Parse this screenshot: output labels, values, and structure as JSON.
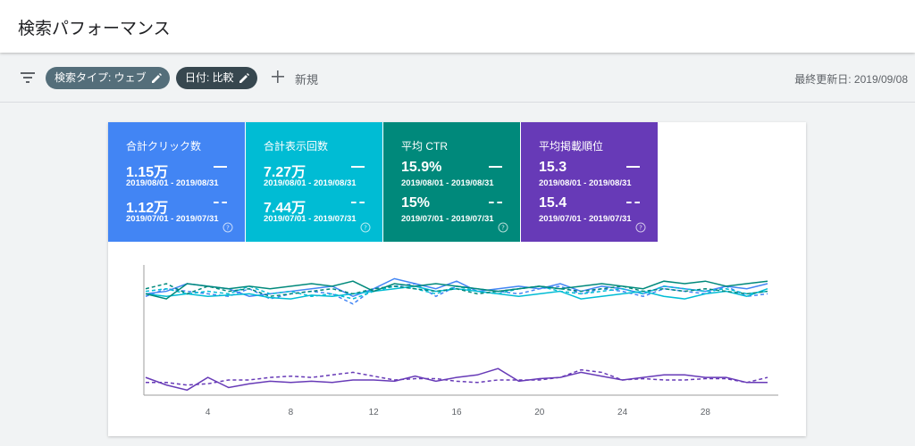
{
  "header": {
    "title": "検索パフォーマンス"
  },
  "toolbar": {
    "filter_icon": "filter-list-icon",
    "chip_search_type": "検索タイプ: ウェブ",
    "chip_date": "日付: 比較",
    "new_label": "新規",
    "last_updated": "最終更新日: 2019/09/08"
  },
  "metrics": [
    {
      "title": "合計クリック数",
      "current": "1.15万",
      "current_range": "2019/08/01 - 2019/08/31",
      "previous": "1.12万",
      "previous_range": "2019/07/01 - 2019/07/31",
      "color": "#4285f4"
    },
    {
      "title": "合計表示回数",
      "current": "7.27万",
      "current_range": "2019/08/01 - 2019/08/31",
      "previous": "7.44万",
      "previous_range": "2019/07/01 - 2019/07/31",
      "color": "#00bcd4"
    },
    {
      "title": "平均 CTR",
      "current": "15.9%",
      "current_range": "2019/08/01 - 2019/08/31",
      "previous": "15%",
      "previous_range": "2019/07/01 - 2019/07/31",
      "color": "#00897b"
    },
    {
      "title": "平均掲載順位",
      "current": "15.3",
      "current_range": "2019/08/01 - 2019/08/31",
      "previous": "15.4",
      "previous_range": "2019/07/01 - 2019/07/31",
      "color": "#673ab7"
    }
  ],
  "chart_data": {
    "type": "line",
    "x": [
      1,
      2,
      3,
      4,
      5,
      6,
      7,
      8,
      9,
      10,
      11,
      12,
      13,
      14,
      15,
      16,
      17,
      18,
      19,
      20,
      21,
      22,
      23,
      24,
      25,
      26,
      27,
      28,
      29,
      30,
      31
    ],
    "xticks": [
      4,
      8,
      12,
      16,
      20,
      24,
      28
    ],
    "ylim": [
      0,
      100
    ],
    "grid": false,
    "series": [
      {
        "name": "",
        "style": "solid",
        "color": "#4285f4",
        "values": [
          80,
          82,
          88,
          86,
          84,
          78,
          80,
          82,
          84,
          86,
          78,
          84,
          92,
          88,
          84,
          90,
          82,
          84,
          86,
          84,
          88,
          82,
          86,
          84,
          80,
          86,
          84,
          82,
          86,
          84,
          88
        ]
      },
      {
        "name": "",
        "style": "dashed",
        "color": "#4285f4",
        "values": [
          78,
          84,
          82,
          80,
          78,
          84,
          76,
          80,
          82,
          80,
          72,
          84,
          86,
          88,
          78,
          86,
          84,
          82,
          80,
          84,
          86,
          80,
          84,
          82,
          78,
          84,
          82,
          80,
          86,
          78,
          80
        ]
      },
      {
        "name": "",
        "style": "solid",
        "color": "#00bcd4",
        "values": [
          80,
          78,
          80,
          78,
          79,
          80,
          77,
          76,
          79,
          78,
          80,
          82,
          84,
          86,
          82,
          84,
          82,
          80,
          78,
          80,
          82,
          76,
          78,
          80,
          82,
          78,
          76,
          80,
          82,
          78,
          84
        ]
      },
      {
        "name": "",
        "style": "dashed",
        "color": "#00bcd4",
        "values": [
          82,
          84,
          80,
          82,
          80,
          86,
          80,
          82,
          78,
          80,
          76,
          82,
          86,
          84,
          80,
          86,
          82,
          80,
          84,
          86,
          82,
          80,
          82,
          84,
          80,
          86,
          84,
          82,
          84,
          80,
          82
        ]
      },
      {
        "name": "",
        "style": "solid",
        "color": "#00897b",
        "values": [
          80,
          76,
          88,
          86,
          84,
          86,
          84,
          86,
          88,
          86,
          90,
          82,
          88,
          86,
          88,
          86,
          84,
          82,
          84,
          86,
          84,
          86,
          88,
          86,
          84,
          90,
          88,
          90,
          86,
          88,
          90
        ]
      },
      {
        "name": "",
        "style": "dashed",
        "color": "#00897b",
        "values": [
          84,
          88,
          80,
          86,
          82,
          84,
          78,
          80,
          82,
          84,
          80,
          84,
          86,
          84,
          82,
          84,
          80,
          82,
          84,
          86,
          84,
          82,
          84,
          86,
          82,
          84,
          82,
          84,
          82,
          80,
          82
        ]
      },
      {
        "name": "",
        "style": "solid",
        "color": "#673ab7",
        "values": [
          14,
          8,
          4,
          14,
          6,
          9,
          11,
          10,
          11,
          10,
          12,
          12,
          11,
          15,
          11,
          14,
          16,
          21,
          11,
          13,
          14,
          18,
          15,
          12,
          14,
          16,
          16,
          14,
          14,
          10,
          10
        ]
      },
      {
        "name": "",
        "style": "dashed",
        "color": "#673ab7",
        "values": [
          10,
          10,
          8,
          9,
          12,
          12,
          14,
          15,
          14,
          16,
          18,
          15,
          12,
          13,
          13,
          11,
          10,
          12,
          12,
          12,
          14,
          20,
          18,
          12,
          13,
          12,
          12,
          13,
          13,
          10,
          14
        ]
      }
    ]
  }
}
